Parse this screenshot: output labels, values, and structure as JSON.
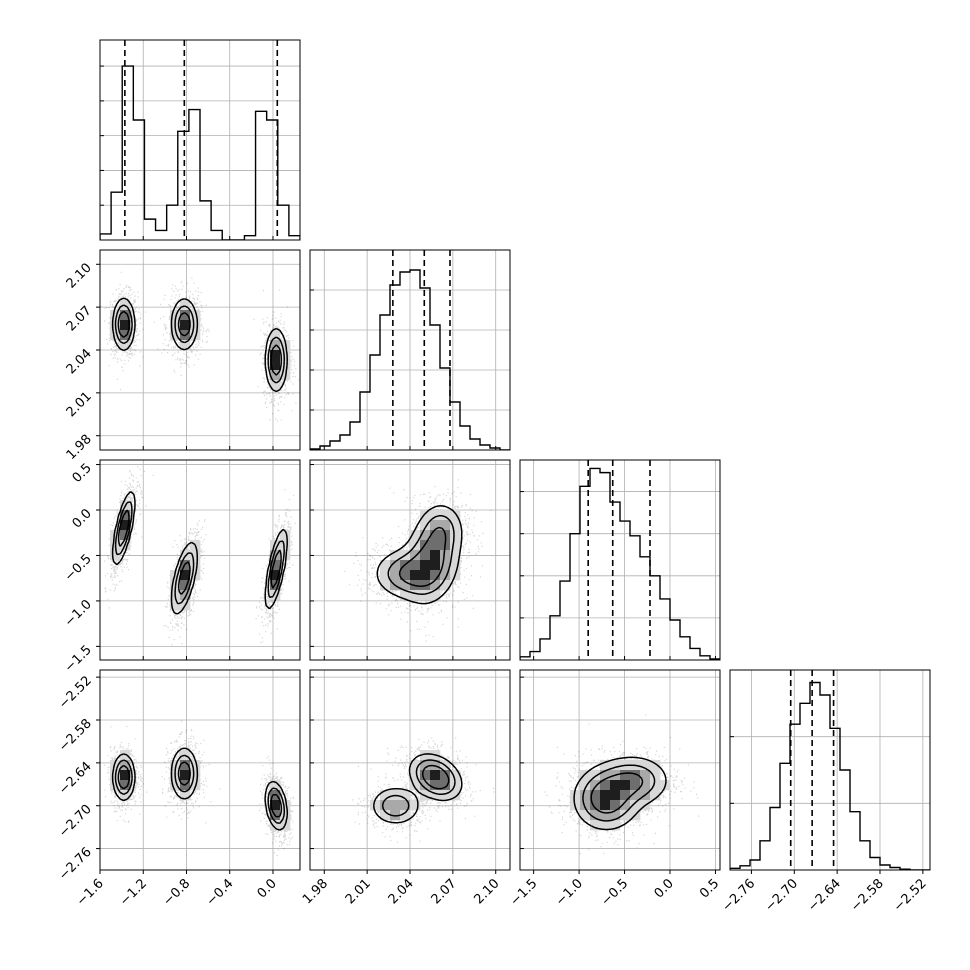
{
  "chart_data": {
    "type": "corner",
    "parameters": [
      {
        "range": [
          -1.6,
          0.25
        ],
        "ticks": [
          -1.6,
          -1.2,
          -0.8,
          -0.4,
          0.0
        ],
        "tick_labels": [
          "−1.6",
          "−1.2",
          "−0.8",
          "−0.4",
          "0.0"
        ],
        "quantiles": [
          -1.37,
          -0.82,
          0.04
        ],
        "hist_y_max": 230,
        "hist_counts": [
          7,
          55,
          200,
          138,
          24,
          11,
          40,
          125,
          150,
          45,
          11,
          0,
          0,
          5,
          148,
          138,
          40,
          5
        ],
        "hist_ticks": [
          40,
          80,
          120,
          160,
          200
        ]
      },
      {
        "range": [
          1.97,
          2.11
        ],
        "ticks": [
          1.98,
          2.01,
          2.04,
          2.07,
          2.1
        ],
        "tick_labels": [
          "1.98",
          "2.01",
          "2.04",
          "2.07",
          "2.10"
        ],
        "quantiles": [
          2.028,
          2.05,
          2.068
        ],
        "hist_y_max": 200,
        "hist_counts": [
          1,
          4,
          9,
          15,
          28,
          58,
          95,
          135,
          165,
          178,
          180,
          162,
          125,
          82,
          48,
          24,
          11,
          5,
          2,
          0
        ],
        "hist_ticks": [
          40,
          80,
          120,
          160
        ]
      },
      {
        "range": [
          -1.65,
          0.55
        ],
        "ticks": [
          -1.5,
          -1.0,
          -0.5,
          0.0,
          0.5
        ],
        "tick_labels": [
          "−1.5",
          "−1.0",
          "−0.5",
          "0.0",
          "0.5"
        ],
        "quantiles": [
          -0.9,
          -0.63,
          -0.22
        ],
        "hist_y_max": 190,
        "hist_counts": [
          3,
          8,
          20,
          42,
          75,
          120,
          165,
          182,
          178,
          150,
          132,
          118,
          98,
          80,
          58,
          38,
          22,
          11,
          4,
          1
        ],
        "hist_ticks": [
          40,
          80,
          120,
          160
        ]
      },
      {
        "range": [
          -2.79,
          -2.51
        ],
        "ticks": [
          -2.76,
          -2.7,
          -2.64,
          -2.58,
          -2.52
        ],
        "tick_labels": [
          "−2.76",
          "−2.70",
          "−2.64",
          "−2.58",
          "−2.52"
        ],
        "quantiles": [
          -2.705,
          -2.675,
          -2.645
        ],
        "hist_y_max": 240,
        "hist_counts": [
          2,
          5,
          12,
          35,
          75,
          128,
          175,
          200,
          225,
          210,
          170,
          120,
          70,
          35,
          15,
          6,
          3,
          1,
          0,
          0
        ],
        "hist_ticks": [
          80,
          160
        ]
      }
    ],
    "blobs": [
      {
        "pair": [
          1,
          0
        ],
        "x": -1.38,
        "y": 2.058,
        "sx": 0.05,
        "sy": 0.009,
        "rho": 0.0,
        "w": 1.0
      },
      {
        "pair": [
          1,
          0
        ],
        "x": -0.82,
        "y": 2.058,
        "sx": 0.06,
        "sy": 0.009,
        "rho": 0.0,
        "w": 0.9
      },
      {
        "pair": [
          1,
          0
        ],
        "x": 0.03,
        "y": 2.033,
        "sx": 0.05,
        "sy": 0.011,
        "rho": 0.0,
        "w": 0.95
      },
      {
        "pair": [
          2,
          0
        ],
        "x": -1.38,
        "y": -0.2,
        "sx": 0.05,
        "sy": 0.2,
        "rho": 0.7,
        "w": 1.0
      },
      {
        "pair": [
          2,
          0
        ],
        "x": -0.82,
        "y": -0.75,
        "sx": 0.06,
        "sy": 0.2,
        "rho": 0.6,
        "w": 0.9
      },
      {
        "pair": [
          2,
          0
        ],
        "x": 0.03,
        "y": -0.65,
        "sx": 0.05,
        "sy": 0.22,
        "rho": 0.7,
        "w": 0.95
      },
      {
        "pair": [
          3,
          0
        ],
        "x": -1.38,
        "y": -2.66,
        "sx": 0.05,
        "sy": 0.016,
        "rho": 0.0,
        "w": 1.0
      },
      {
        "pair": [
          3,
          0
        ],
        "x": -0.82,
        "y": -2.655,
        "sx": 0.06,
        "sy": 0.018,
        "rho": 0.0,
        "w": 0.9
      },
      {
        "pair": [
          3,
          0
        ],
        "x": 0.03,
        "y": -2.7,
        "sx": 0.05,
        "sy": 0.017,
        "rho": -0.3,
        "w": 0.95
      },
      {
        "pair": [
          2,
          1
        ],
        "x": 2.055,
        "y": -0.55,
        "sx": 0.01,
        "sy": 0.24,
        "rho": 0.2,
        "w": 1.0
      },
      {
        "pair": [
          2,
          1
        ],
        "x": 2.038,
        "y": -0.7,
        "sx": 0.012,
        "sy": 0.14,
        "rho": 0.0,
        "w": 0.75
      },
      {
        "pair": [
          2,
          1
        ],
        "x": 2.062,
        "y": -0.2,
        "sx": 0.008,
        "sy": 0.15,
        "rho": 0.0,
        "w": 0.45
      },
      {
        "pair": [
          3,
          1
        ],
        "x": 2.058,
        "y": -2.66,
        "sx": 0.009,
        "sy": 0.016,
        "rho": -0.3,
        "w": 1.0
      },
      {
        "pair": [
          3,
          1
        ],
        "x": 2.03,
        "y": -2.7,
        "sx": 0.009,
        "sy": 0.014,
        "rho": 0.0,
        "w": 0.55
      },
      {
        "pair": [
          3,
          2
        ],
        "x": -0.7,
        "y": -2.69,
        "sx": 0.18,
        "sy": 0.022,
        "rho": 0.0,
        "w": 1.0
      },
      {
        "pair": [
          3,
          2
        ],
        "x": -0.4,
        "y": -2.665,
        "sx": 0.2,
        "sy": 0.018,
        "rho": 0.0,
        "w": 0.7
      }
    ]
  }
}
